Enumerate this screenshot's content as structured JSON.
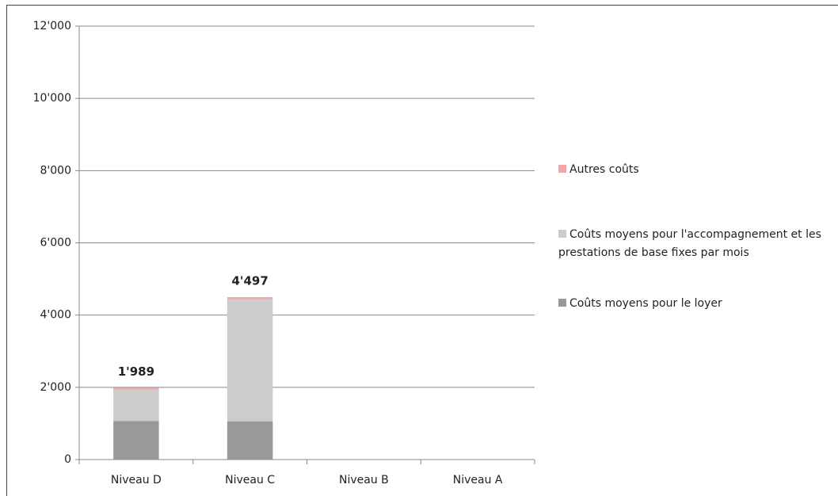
{
  "chart_data": {
    "type": "stacked_bar",
    "categories": [
      "Niveau D",
      "Niveau C",
      "Niveau B",
      "Niveau A"
    ],
    "series": [
      {
        "name": "Coûts moyens pour le loyer",
        "color": "#999999",
        "values": [
          1070,
          1060,
          null,
          null
        ]
      },
      {
        "name": "Coûts moyens pour l'accompagnement et les prestations de base fixes par mois",
        "color": "#cccccc",
        "values": [
          870,
          3380,
          null,
          null
        ]
      },
      {
        "name": "Autres coûts",
        "color": "#f4a6a6",
        "values": [
          49,
          57,
          null,
          null
        ]
      }
    ],
    "totals": [
      1989,
      4497,
      null,
      null
    ],
    "total_labels": [
      "1'989",
      "4'497",
      null,
      null
    ],
    "ylim": [
      0,
      12000
    ],
    "yticks": [
      0,
      {
        "value": 2000,
        "label": "2'000"
      },
      {
        "value": 4000,
        "label": "4'000"
      },
      {
        "value": 6000,
        "label": "6'000"
      },
      {
        "value": 8000,
        "label": "8'000"
      },
      {
        "value": 10000,
        "label": "10'000"
      },
      {
        "value": 12000,
        "label": "12'000"
      }
    ],
    "grid": true
  }
}
